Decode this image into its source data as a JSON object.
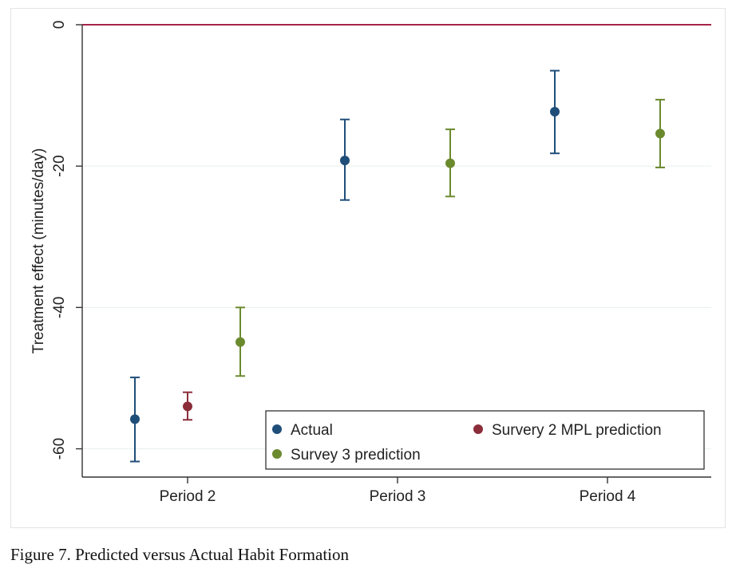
{
  "caption": "Figure 7. Predicted versus Actual Habit Formation",
  "colors": {
    "Actual": "#1f4e79",
    "Survery 2 MPL prediction": "#8b2e3a",
    "Survey 3 prediction": "#6b8a2e",
    "reference_line": "#a8234a",
    "axis": "#333333",
    "grid": "#eaf1ee"
  },
  "chart_data": {
    "type": "scatter",
    "subtype": "point estimates with confidence intervals",
    "title": "",
    "xlabel": "",
    "ylabel": "Treatment effect (minutes/day)",
    "categories": [
      "Period 2",
      "Period 3",
      "Period 4"
    ],
    "ylim": [
      -64,
      0
    ],
    "yticks": [
      0,
      -20,
      -40,
      -60
    ],
    "ytick_labels": [
      "0",
      "-20",
      "-40",
      "-60"
    ],
    "reference_line": 0,
    "grid": true,
    "legend_position": "bottom-right",
    "legend": [
      "Actual",
      "Survery 2 MPL prediction",
      "Survey 3 prediction"
    ],
    "series": [
      {
        "name": "Actual",
        "points": [
          {
            "category": "Period 2",
            "value": -55.8,
            "ci_low": -61.8,
            "ci_high": -49.9
          },
          {
            "category": "Period 3",
            "value": -19.2,
            "ci_low": -24.8,
            "ci_high": -13.4
          },
          {
            "category": "Period 4",
            "value": -12.3,
            "ci_low": -18.2,
            "ci_high": -6.5
          }
        ]
      },
      {
        "name": "Survery 2 MPL prediction",
        "points": [
          {
            "category": "Period 2",
            "value": -54.0,
            "ci_low": -55.9,
            "ci_high": -52.0
          }
        ]
      },
      {
        "name": "Survey 3 prediction",
        "points": [
          {
            "category": "Period 2",
            "value": -44.9,
            "ci_low": -49.7,
            "ci_high": -40.0
          },
          {
            "category": "Period 3",
            "value": -19.6,
            "ci_low": -24.3,
            "ci_high": -14.8
          },
          {
            "category": "Period 4",
            "value": -15.4,
            "ci_low": -20.2,
            "ci_high": -10.6
          }
        ]
      }
    ]
  }
}
